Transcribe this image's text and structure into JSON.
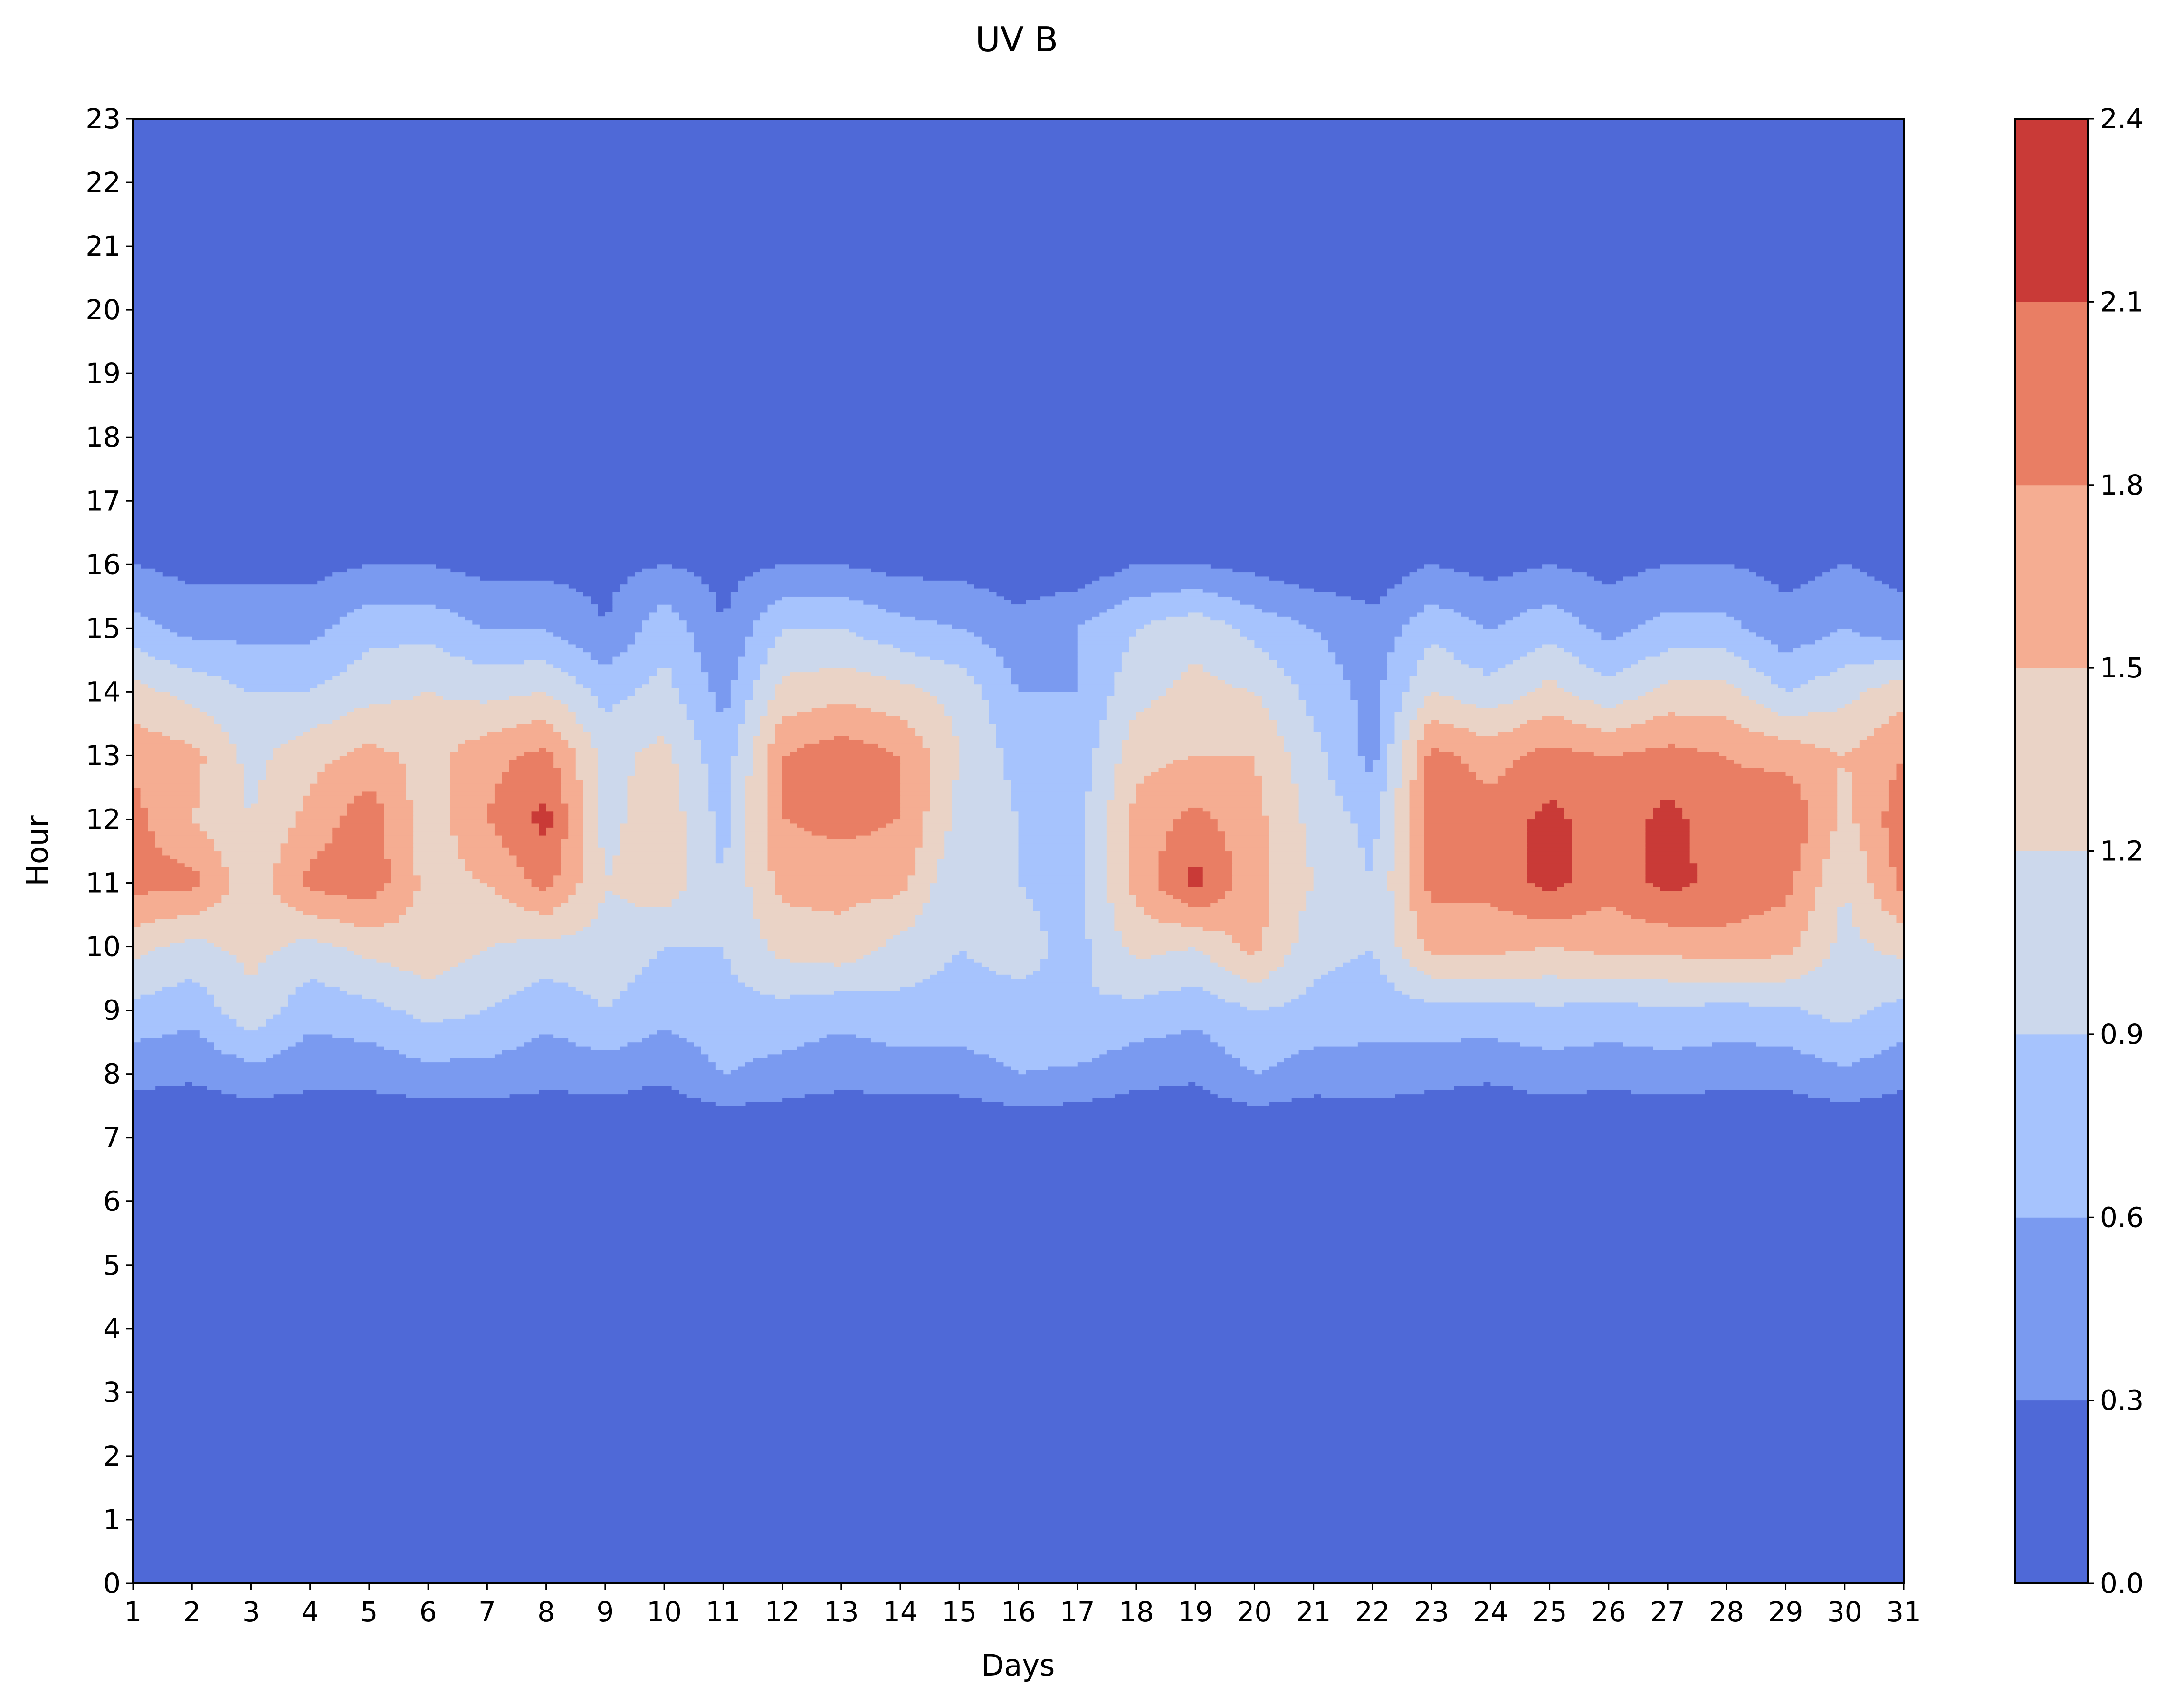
{
  "chart_data": {
    "type": "heatmap",
    "title": "UV B",
    "xlabel": "Days",
    "ylabel": "Hour",
    "xlim": [
      1,
      31
    ],
    "ylim": [
      0,
      23
    ],
    "x_ticks": [
      "1",
      "2",
      "3",
      "4",
      "5",
      "6",
      "7",
      "8",
      "9",
      "10",
      "11",
      "12",
      "13",
      "14",
      "15",
      "16",
      "17",
      "18",
      "19",
      "20",
      "21",
      "22",
      "23",
      "24",
      "25",
      "26",
      "27",
      "28",
      "29",
      "30",
      "31"
    ],
    "y_ticks": [
      "0",
      "1",
      "2",
      "3",
      "4",
      "5",
      "6",
      "7",
      "8",
      "9",
      "10",
      "11",
      "12",
      "13",
      "14",
      "15",
      "16",
      "17",
      "18",
      "19",
      "20",
      "21",
      "22",
      "23"
    ],
    "colorbar": {
      "levels": [
        0.0,
        0.3,
        0.6,
        0.9,
        1.2,
        1.5,
        1.8,
        2.1,
        2.4
      ],
      "tick_labels": [
        "0.0",
        "0.3",
        "0.6",
        "0.9",
        "1.2",
        "1.5",
        "1.8",
        "2.1",
        "2.4"
      ],
      "colors": [
        "#4f69d7",
        "#7a9af0",
        "#a6c3fd",
        "#ccd8ec",
        "#ead3c6",
        "#f5ad92",
        "#e97e64",
        "#c93a37"
      ]
    },
    "hours_plotted": [
      7,
      8,
      9,
      10,
      11,
      12,
      13,
      14,
      15,
      16
    ],
    "grid_values": [
      [
        0.0,
        0.0,
        0.0,
        0.0,
        0.0,
        0.0,
        0.0,
        0.0,
        0.0,
        0.0,
        0.0,
        0.0,
        0.0,
        0.0,
        0.0,
        0.0,
        0.0,
        0.0,
        0.0,
        0.0,
        0.0,
        0.0,
        0.0,
        0.0,
        0.0,
        0.0,
        0.0,
        0.0,
        0.0,
        0.0,
        0.0
      ],
      [
        0.4,
        0.35,
        0.5,
        0.4,
        0.4,
        0.5,
        0.5,
        0.4,
        0.45,
        0.35,
        0.6,
        0.5,
        0.4,
        0.45,
        0.45,
        0.6,
        0.55,
        0.4,
        0.35,
        0.6,
        0.45,
        0.5,
        0.4,
        0.35,
        0.45,
        0.4,
        0.45,
        0.4,
        0.4,
        0.55,
        0.4
      ],
      [
        0.8,
        0.7,
        1.1,
        0.7,
        0.8,
        1.0,
        0.9,
        0.7,
        0.9,
        0.7,
        0.8,
        0.8,
        0.7,
        0.8,
        0.8,
        0.8,
        0.9,
        0.8,
        0.7,
        0.9,
        0.8,
        0.7,
        0.8,
        0.8,
        0.85,
        0.8,
        0.85,
        0.8,
        0.85,
        1.0,
        0.8
      ],
      [
        1.3,
        1.1,
        1.3,
        1.1,
        1.3,
        1.4,
        1.2,
        1.1,
        1.1,
        0.9,
        0.9,
        1.3,
        1.4,
        1.1,
        0.9,
        1.0,
        0.8,
        1.3,
        1.2,
        1.6,
        1.0,
        0.9,
        1.6,
        1.6,
        1.5,
        1.6,
        1.6,
        1.7,
        1.6,
        1.1,
        1.3
      ],
      [
        1.9,
        1.9,
        1.3,
        1.9,
        2.0,
        1.4,
        1.5,
        1.9,
        1.2,
        1.4,
        0.9,
        1.6,
        1.6,
        1.6,
        0.9,
        0.9,
        0.8,
        1.6,
        2.2,
        1.6,
        1.2,
        0.9,
        1.9,
        1.9,
        2.2,
        1.9,
        2.2,
        2.0,
        1.9,
        1.2,
        1.9
      ],
      [
        1.9,
        1.5,
        1.2,
        1.6,
        2.0,
        1.3,
        1.8,
        2.2,
        1.1,
        1.4,
        0.8,
        1.8,
        1.9,
        1.8,
        1.1,
        0.9,
        0.8,
        1.6,
        1.9,
        1.6,
        1.1,
        0.8,
        1.9,
        1.9,
        2.2,
        1.9,
        2.2,
        1.9,
        2.1,
        1.4,
        2.0
      ],
      [
        1.7,
        1.6,
        1.1,
        1.4,
        1.6,
        1.4,
        1.7,
        1.9,
        1.1,
        1.3,
        0.7,
        1.8,
        2.0,
        1.8,
        1.2,
        0.8,
        0.7,
        1.4,
        1.5,
        1.5,
        1.0,
        0.5,
        1.9,
        1.7,
        1.9,
        1.8,
        1.9,
        1.8,
        1.7,
        1.5,
        1.8
      ],
      [
        1.3,
        1.1,
        0.9,
        0.9,
        1.1,
        1.2,
        1.1,
        1.2,
        0.8,
        1.0,
        0.5,
        1.3,
        1.4,
        1.3,
        1.1,
        0.6,
        0.6,
        1.1,
        1.3,
        1.2,
        0.8,
        0.5,
        1.2,
        1.0,
        1.3,
        1.0,
        1.3,
        1.3,
        0.9,
        1.1,
        1.4
      ],
      [
        0.7,
        0.5,
        0.5,
        0.5,
        0.8,
        0.8,
        0.6,
        0.6,
        0.3,
        0.8,
        0.3,
        0.9,
        0.9,
        0.7,
        0.6,
        0.4,
        0.6,
        0.9,
        1.1,
        0.8,
        0.6,
        0.4,
        0.8,
        0.6,
        0.8,
        0.5,
        0.7,
        0.7,
        0.4,
        0.6,
        0.4
      ],
      [
        0.3,
        0.2,
        0.2,
        0.2,
        0.3,
        0.3,
        0.2,
        0.2,
        0.2,
        0.3,
        0.2,
        0.3,
        0.3,
        0.2,
        0.2,
        0.1,
        0.1,
        0.3,
        0.3,
        0.2,
        0.1,
        0.1,
        0.3,
        0.2,
        0.3,
        0.2,
        0.3,
        0.3,
        0.2,
        0.3,
        0.2
      ]
    ]
  }
}
